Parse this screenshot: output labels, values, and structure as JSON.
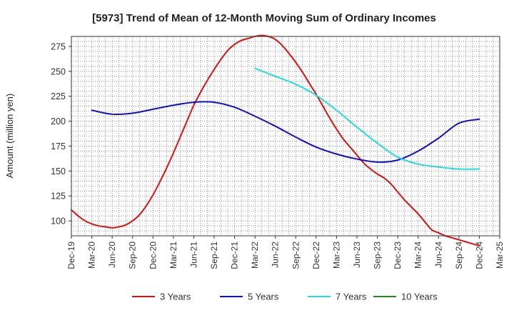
{
  "chart_data": {
    "type": "line",
    "title": "[5973]  Trend of Mean of 12-Month Moving Sum of Ordinary Incomes",
    "xlabel": "",
    "ylabel": "Amount (million yen)",
    "ylim": [
      85,
      285
    ],
    "yticks": [
      100,
      125,
      150,
      175,
      200,
      225,
      250,
      275
    ],
    "grid": true,
    "legend_position": "bottom",
    "x_ticks": [
      "Dec-19",
      "Mar-20",
      "Jun-20",
      "Sep-20",
      "Dec-20",
      "Mar-21",
      "Jun-21",
      "Sep-21",
      "Dec-21",
      "Mar-22",
      "Jun-22",
      "Sep-22",
      "Dec-22",
      "Mar-23",
      "Jun-23",
      "Sep-23",
      "Dec-23",
      "Mar-24",
      "Jun-24",
      "Sep-24",
      "Dec-24",
      "Mar-25"
    ],
    "series": [
      {
        "name": "3 Years",
        "color": "#dd1111",
        "x": [
          "Dec-19",
          "Jan-20",
          "Feb-20",
          "Mar-20",
          "Apr-20",
          "May-20",
          "Jun-20",
          "Jul-20",
          "Aug-20",
          "Sep-20",
          "Oct-20",
          "Nov-20",
          "Dec-20",
          "Jan-21",
          "Feb-21",
          "Mar-21",
          "Apr-21",
          "May-21",
          "Jun-21",
          "Jul-21",
          "Aug-21",
          "Sep-21",
          "Oct-21",
          "Nov-21",
          "Dec-21",
          "Jan-22",
          "Feb-22",
          "Mar-22",
          "Apr-22",
          "May-22",
          "Jun-22",
          "Jul-22",
          "Aug-22",
          "Sep-22",
          "Oct-22",
          "Nov-22",
          "Dec-22",
          "Jan-23",
          "Feb-23",
          "Mar-23",
          "Apr-23",
          "May-23",
          "Jun-23",
          "Jul-23",
          "Aug-23",
          "Sep-23",
          "Oct-23",
          "Nov-23",
          "Dec-23",
          "Jan-24",
          "Feb-24",
          "Mar-24",
          "Apr-24",
          "May-24",
          "Jun-24",
          "Jul-24",
          "Aug-24",
          "Sep-24",
          "Oct-24",
          "Nov-24",
          "Dec-24"
        ],
        "values": [
          111,
          105,
          100,
          97,
          95,
          94,
          93,
          94,
          96,
          100,
          106,
          115,
          126,
          139,
          153,
          168,
          184,
          200,
          216,
          229,
          241,
          252,
          262,
          271,
          277,
          281,
          283,
          285,
          286,
          285,
          282,
          276,
          268,
          259,
          249,
          238,
          227,
          215,
          203,
          192,
          182,
          174,
          166,
          158,
          152,
          147,
          143,
          137,
          129,
          121,
          114,
          107,
          99,
          91,
          88,
          85,
          83,
          81,
          79,
          77,
          75
        ]
      },
      {
        "name": "5 Years",
        "color": "#1111cc",
        "x": [
          "Mar-20",
          "Jun-20",
          "Sep-20",
          "Dec-20",
          "Mar-21",
          "Jun-21",
          "Sep-21",
          "Dec-21",
          "Mar-22",
          "Jun-22",
          "Sep-22",
          "Dec-22",
          "Mar-23",
          "Jun-23",
          "Sep-23",
          "Dec-23",
          "Mar-24",
          "Jun-24",
          "Sep-24",
          "Dec-24"
        ],
        "values": [
          211,
          207,
          208,
          212,
          216,
          219,
          219,
          214,
          205,
          195,
          184,
          174,
          167,
          162,
          159,
          161,
          170,
          183,
          198,
          202
        ]
      },
      {
        "name": "7 Years",
        "color": "#22dddd",
        "x": [
          "Mar-22",
          "Jun-22",
          "Sep-22",
          "Dec-22",
          "Mar-23",
          "Jun-23",
          "Sep-23",
          "Dec-23",
          "Mar-24",
          "Jun-24",
          "Sep-24",
          "Dec-24"
        ],
        "values": [
          253,
          245,
          237,
          226,
          211,
          194,
          178,
          164,
          157,
          154,
          152,
          152
        ]
      },
      {
        "name": "10 Years",
        "color": "#228822",
        "x": [],
        "values": []
      }
    ]
  }
}
